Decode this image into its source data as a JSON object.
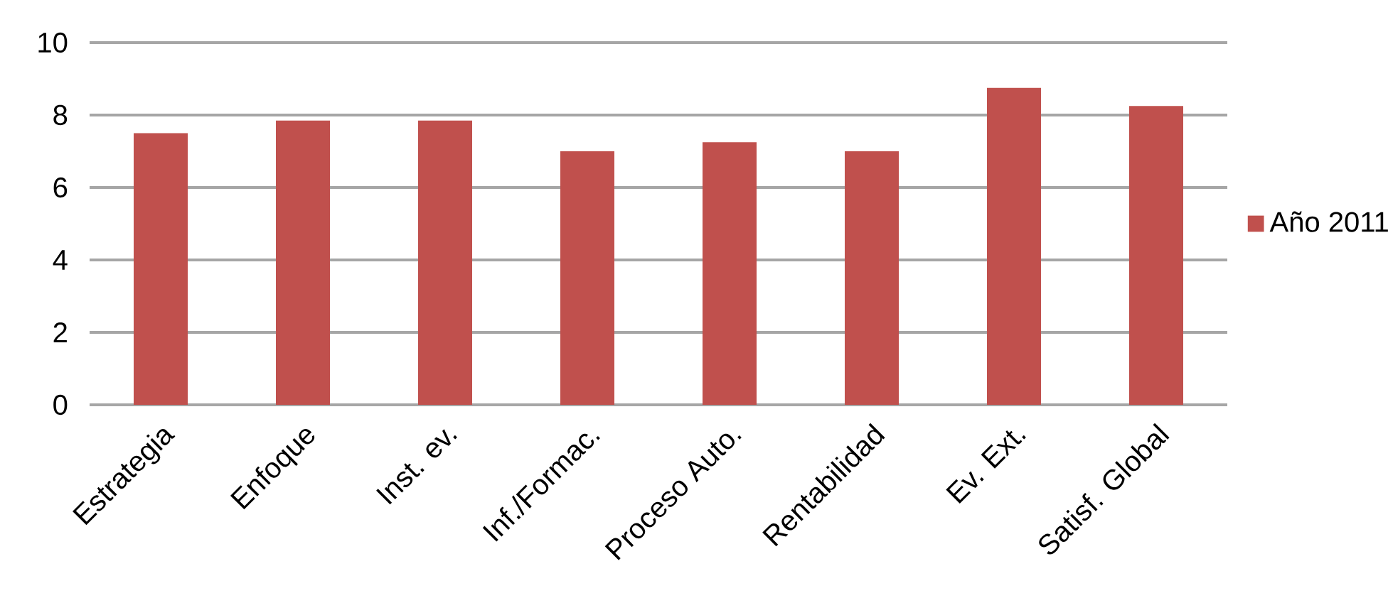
{
  "chart_data": {
    "type": "bar",
    "categories": [
      "Estrategia",
      "Enfoque",
      "Inst. ev.",
      "Inf./Formac.",
      "Proceso Auto.",
      "Rentabilidad",
      "Ev. Ext.",
      "Satisf. Global"
    ],
    "series": [
      {
        "name": "Año 2011",
        "color": "#c0504d",
        "values": [
          7.5,
          7.85,
          7.85,
          7.0,
          7.25,
          7.0,
          8.75,
          8.25
        ]
      }
    ],
    "ylim": [
      0,
      10
    ],
    "yticks": [
      0,
      2,
      4,
      6,
      8,
      10
    ],
    "grid": "y",
    "legend": "right"
  }
}
